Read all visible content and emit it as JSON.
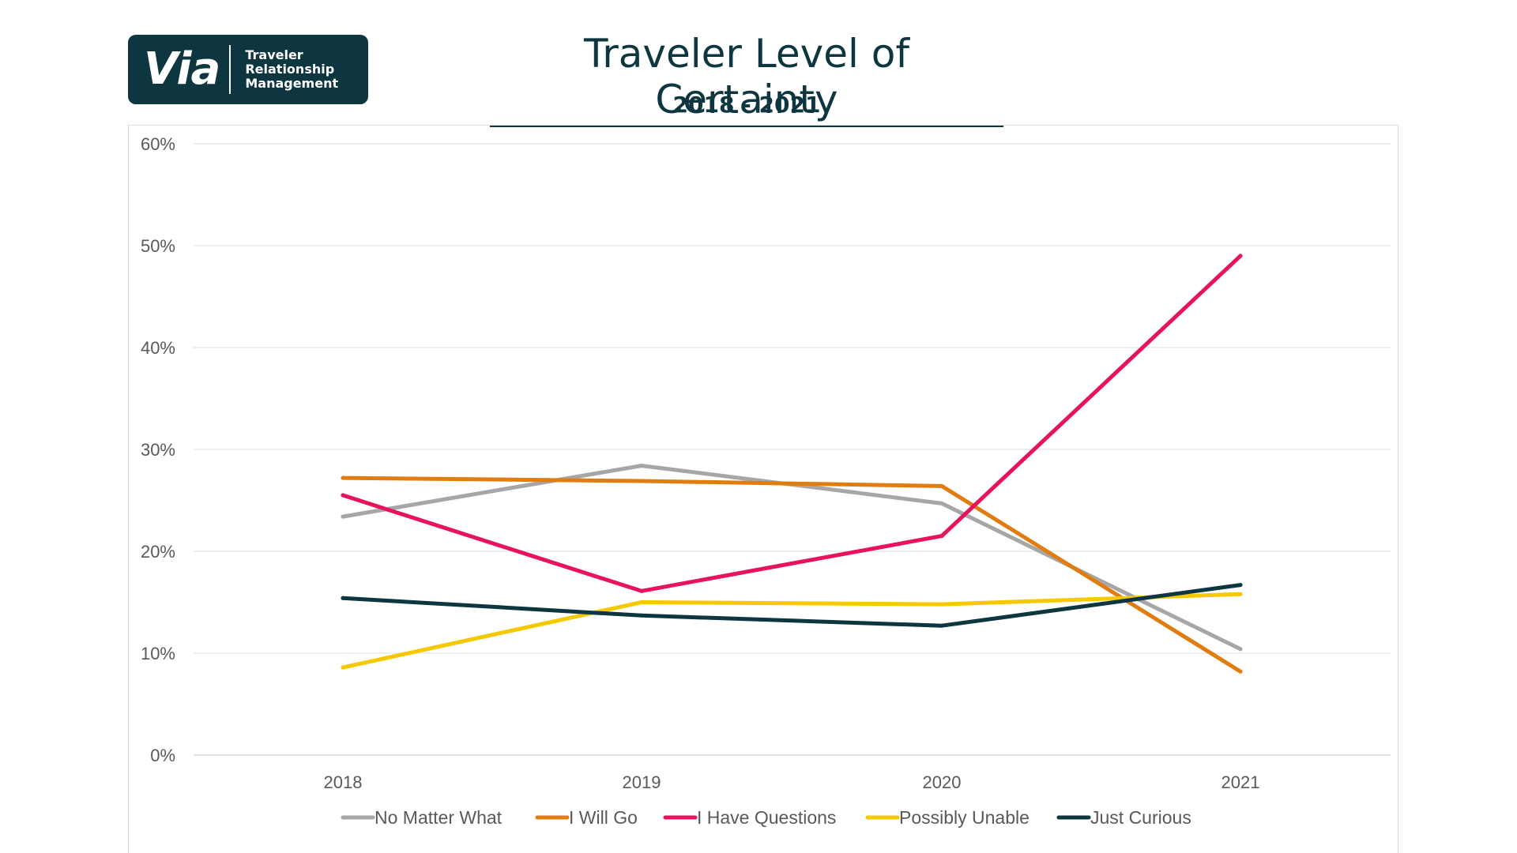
{
  "logo": {
    "word": "Via",
    "lines": [
      "Traveler",
      "Relationship",
      "Management"
    ]
  },
  "chart_data": {
    "type": "line",
    "title": "Traveler Level of Certainty",
    "subtitle": "2018 - 2021",
    "x": [
      "2018",
      "2019",
      "2020",
      "2021"
    ],
    "ylim": [
      0,
      60
    ],
    "yticks": [
      "0%",
      "10%",
      "20%",
      "30%",
      "40%",
      "50%",
      "60%"
    ],
    "grid": true,
    "legend_position": "bottom",
    "series": [
      {
        "name": "No Matter What",
        "color": "#a6a6a6",
        "values": [
          23.4,
          28.4,
          24.7,
          10.4
        ]
      },
      {
        "name": "I Will Go",
        "color": "#e07c10",
        "values": [
          27.2,
          26.9,
          26.4,
          8.2
        ]
      },
      {
        "name": "I Have Questions",
        "color": "#e8135f",
        "values": [
          25.5,
          16.1,
          21.5,
          49.0
        ]
      },
      {
        "name": "Possibly Unable",
        "color": "#f5c800",
        "values": [
          8.6,
          15.0,
          14.8,
          15.8
        ]
      },
      {
        "name": "Just Curious",
        "color": "#0d3640",
        "values": [
          15.4,
          13.7,
          12.7,
          16.7
        ]
      }
    ]
  }
}
